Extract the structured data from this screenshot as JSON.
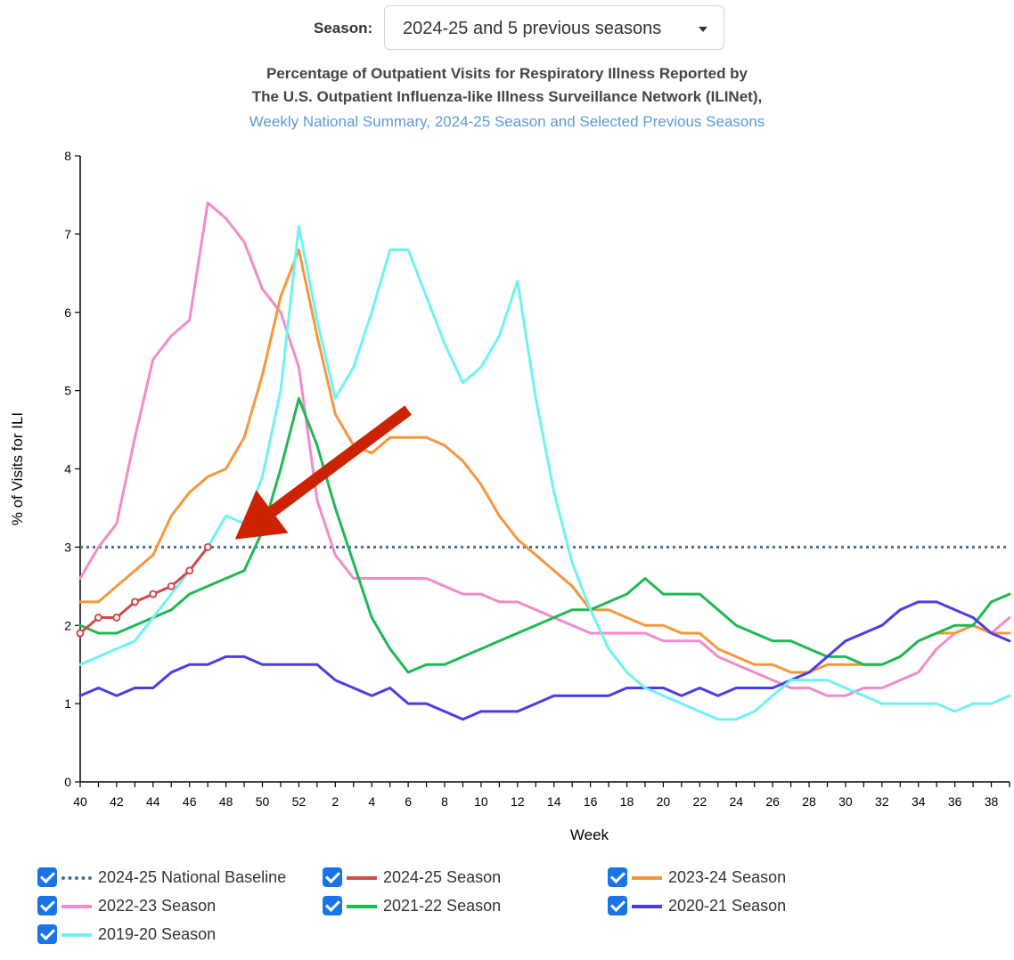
{
  "season_selector": {
    "label": "Season:",
    "value": "2024-25 and 5 previous seasons"
  },
  "title": {
    "line1": "Percentage of Outpatient Visits for Respiratory Illness Reported by",
    "line2": "The U.S. Outpatient Influenza-like Illness Surveillance Network (ILINet),",
    "line3": "Weekly National Summary, 2024-25 Season and Selected Previous Seasons"
  },
  "chart_data": {
    "type": "line",
    "xlabel": "Week",
    "ylabel": "% of Visits for ILI",
    "ylim": [
      0,
      8
    ],
    "yticks": [
      "0",
      "1",
      "2",
      "3",
      "4",
      "5",
      "6",
      "7",
      "8"
    ],
    "x_weeks": [
      40,
      41,
      42,
      43,
      44,
      45,
      46,
      47,
      48,
      49,
      50,
      51,
      52,
      1,
      2,
      3,
      4,
      5,
      6,
      7,
      8,
      9,
      10,
      11,
      12,
      13,
      14,
      15,
      16,
      17,
      18,
      19,
      20,
      21,
      22,
      23,
      24,
      25,
      26,
      27,
      28,
      29,
      30,
      31,
      32,
      33,
      34,
      35,
      36,
      37,
      38,
      39
    ],
    "xtick_labels": [
      "40",
      "42",
      "44",
      "46",
      "48",
      "50",
      "52",
      "2",
      "4",
      "6",
      "8",
      "10",
      "12",
      "14",
      "16",
      "18",
      "20",
      "22",
      "24",
      "26",
      "28",
      "30",
      "32",
      "34",
      "36",
      "38"
    ],
    "baseline": {
      "name": "2024-25 National Baseline",
      "value": 3.0,
      "color": "#4a6d8c"
    },
    "series": [
      {
        "name": "2022-23 Season",
        "color": "#f28bc8",
        "values": [
          2.6,
          3.0,
          3.3,
          4.4,
          5.4,
          5.7,
          5.9,
          7.4,
          7.2,
          6.9,
          6.3,
          6.0,
          5.3,
          3.6,
          2.9,
          2.6,
          2.6,
          2.6,
          2.6,
          2.6,
          2.5,
          2.4,
          2.4,
          2.3,
          2.3,
          2.2,
          2.1,
          2.0,
          1.9,
          1.9,
          1.9,
          1.9,
          1.8,
          1.8,
          1.8,
          1.6,
          1.5,
          1.4,
          1.3,
          1.2,
          1.2,
          1.1,
          1.1,
          1.2,
          1.2,
          1.3,
          1.4,
          1.7,
          1.9,
          2.0,
          1.9,
          2.1
        ]
      },
      {
        "name": "2023-24 Season",
        "color": "#f5973d",
        "values": [
          2.3,
          2.3,
          2.5,
          2.7,
          2.9,
          3.4,
          3.7,
          3.9,
          4.0,
          4.4,
          5.2,
          6.2,
          6.8,
          5.7,
          4.7,
          4.3,
          4.2,
          4.4,
          4.4,
          4.4,
          4.3,
          4.1,
          3.8,
          3.4,
          3.1,
          2.9,
          2.7,
          2.5,
          2.2,
          2.2,
          2.1,
          2.0,
          2.0,
          1.9,
          1.9,
          1.7,
          1.6,
          1.5,
          1.5,
          1.4,
          1.4,
          1.5,
          1.5,
          1.5,
          1.5,
          1.6,
          1.8,
          1.9,
          1.9,
          2.0,
          1.9,
          1.9
        ]
      },
      {
        "name": "2021-22 Season",
        "color": "#1db954",
        "values": [
          2.0,
          1.9,
          1.9,
          2.0,
          2.1,
          2.2,
          2.4,
          2.5,
          2.6,
          2.7,
          3.2,
          4.0,
          4.9,
          4.3,
          3.5,
          2.8,
          2.1,
          1.7,
          1.4,
          1.5,
          1.5,
          1.6,
          1.7,
          1.8,
          1.9,
          2.0,
          2.1,
          2.2,
          2.2,
          2.3,
          2.4,
          2.6,
          2.4,
          2.4,
          2.4,
          2.2,
          2.0,
          1.9,
          1.8,
          1.8,
          1.7,
          1.6,
          1.6,
          1.5,
          1.5,
          1.6,
          1.8,
          1.9,
          2.0,
          2.0,
          2.3,
          2.4
        ]
      },
      {
        "name": "2020-21 Season",
        "color": "#4a3de6",
        "values": [
          1.1,
          1.2,
          1.1,
          1.2,
          1.2,
          1.4,
          1.5,
          1.5,
          1.6,
          1.6,
          1.5,
          1.5,
          1.5,
          1.5,
          1.3,
          1.2,
          1.1,
          1.2,
          1.0,
          1.0,
          0.9,
          0.8,
          0.9,
          0.9,
          0.9,
          1.0,
          1.1,
          1.1,
          1.1,
          1.1,
          1.2,
          1.2,
          1.2,
          1.1,
          1.2,
          1.1,
          1.2,
          1.2,
          1.2,
          1.3,
          1.4,
          1.6,
          1.8,
          1.9,
          2.0,
          2.2,
          2.3,
          2.3,
          2.2,
          2.1,
          1.9,
          1.8
        ]
      },
      {
        "name": "2019-20 Season",
        "color": "#6ff2f2",
        "values": [
          1.5,
          1.6,
          1.7,
          1.8,
          2.1,
          2.4,
          2.7,
          3.0,
          3.4,
          3.3,
          3.9,
          5.0,
          7.1,
          5.9,
          4.9,
          5.3,
          6.0,
          6.8,
          6.8,
          6.2,
          5.6,
          5.1,
          5.3,
          5.7,
          6.4,
          4.9,
          3.7,
          2.8,
          2.2,
          1.7,
          1.4,
          1.2,
          1.1,
          1.0,
          0.9,
          0.8,
          0.8,
          0.9,
          1.1,
          1.3,
          1.3,
          1.3,
          1.2,
          1.1,
          1.0,
          1.0,
          1.0,
          1.0,
          0.9,
          1.0,
          1.0,
          1.1
        ]
      },
      {
        "name": "2024-25 Season",
        "color": "#d24a4a",
        "markers": true,
        "values": [
          1.9,
          2.1,
          2.1,
          2.3,
          2.4,
          2.5,
          2.7,
          3.0
        ]
      }
    ],
    "annotation": {
      "type": "arrow",
      "color": "#cc2200",
      "from": [
        5.5,
        4.75
      ],
      "to": [
        48.5,
        3.1
      ]
    }
  },
  "legend": [
    {
      "label": "2024-25 National Baseline",
      "color": "#4a6d8c",
      "style": "dotted",
      "checked": true
    },
    {
      "label": "2024-25 Season",
      "color": "#d24a4a",
      "style": "solid",
      "checked": true
    },
    {
      "label": "2023-24 Season",
      "color": "#f5973d",
      "style": "solid",
      "checked": true
    },
    {
      "label": "2022-23 Season",
      "color": "#f28bc8",
      "style": "solid",
      "checked": true
    },
    {
      "label": "2021-22 Season",
      "color": "#1db954",
      "style": "solid",
      "checked": true
    },
    {
      "label": "2020-21 Season",
      "color": "#4a3de6",
      "style": "solid",
      "checked": true
    },
    {
      "label": "2019-20 Season",
      "color": "#6ff2f2",
      "style": "solid",
      "checked": true
    }
  ]
}
